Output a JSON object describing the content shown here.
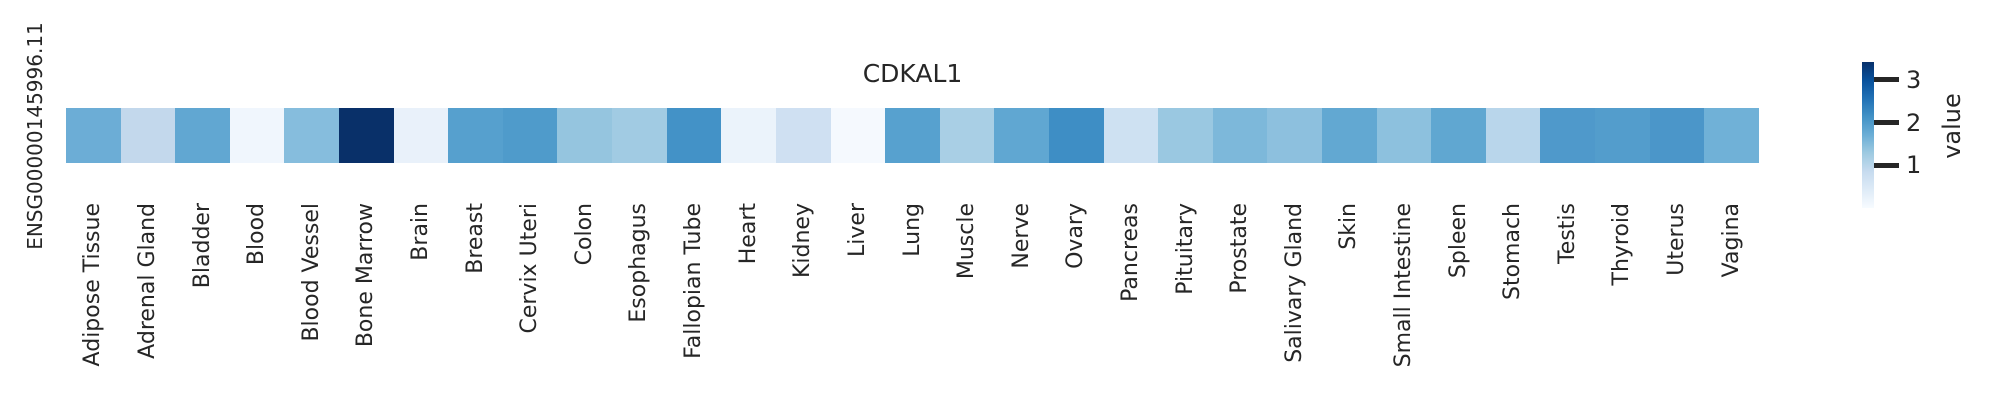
{
  "figure": {
    "title": "CDKAL1",
    "y_axis_label": "ENSG00000145996.11",
    "background_color": "#ffffff",
    "text_color": "#262626"
  },
  "colorbar": {
    "label": "value",
    "ticks": [
      3,
      2,
      1
    ],
    "vmin": 0,
    "vmax": 3.42,
    "top_color": "#08306b",
    "bottom_color": "#f7fbff"
  },
  "chart_data": {
    "type": "heatmap",
    "title": "CDKAL1",
    "colormap": "Blues",
    "rows": [
      "ENSG00000145996.11"
    ],
    "categories": [
      "Adipose Tissue",
      "Adrenal Gland",
      "Bladder",
      "Blood",
      "Blood Vessel",
      "Bone Marrow",
      "Brain",
      "Breast",
      "Cervix Uteri",
      "Colon",
      "Esophagus",
      "Fallopian Tube",
      "Heart",
      "Kidney",
      "Liver",
      "Lung",
      "Muscle",
      "Nerve",
      "Ovary",
      "Pancreas",
      "Pituitary",
      "Prostate",
      "Salivary Gland",
      "Skin",
      "Small Intestine",
      "Spleen",
      "Stomach",
      "Testis",
      "Thyroid",
      "Uterus",
      "Vagina"
    ],
    "values": [
      [
        1.7,
        0.9,
        1.8,
        0.1,
        1.5,
        3.4,
        0.2,
        1.9,
        2.0,
        1.4,
        1.3,
        2.1,
        0.2,
        0.8,
        0.1,
        1.9,
        1.2,
        1.8,
        2.2,
        0.8,
        1.3,
        1.6,
        1.5,
        1.8,
        1.4,
        1.9,
        1.1,
        2.0,
        2.0,
        2.1,
        1.7
      ]
    ],
    "cell_colors": [
      [
        "#6cadd6",
        "#c3d8ec",
        "#61a7d2",
        "#f0f6fd",
        "#86bddd",
        "#093069",
        "#e9f1fa",
        "#56a0ce",
        "#4f9bcb",
        "#95c5df",
        "#a1cbe3",
        "#4392c7",
        "#ebf3fb",
        "#cfe0f2",
        "#f5f9fe",
        "#57a1cf",
        "#a9cfe5",
        "#60a7d2",
        "#3e8ec5",
        "#cee1f2",
        "#9ac8e1",
        "#7db8da",
        "#8dc0de",
        "#62a8d2",
        "#8dc1de",
        "#60a7d1",
        "#b9d6eb",
        "#4f99cb",
        "#539dcc",
        "#4b96c9",
        "#70b1d7"
      ]
    ],
    "colorbar_label": "value",
    "colorbar_ticks": [
      1,
      2,
      3
    ],
    "value_range": [
      0,
      3.42
    ],
    "legend_position": "right",
    "x_tick_rotation": 90,
    "grid": false
  }
}
